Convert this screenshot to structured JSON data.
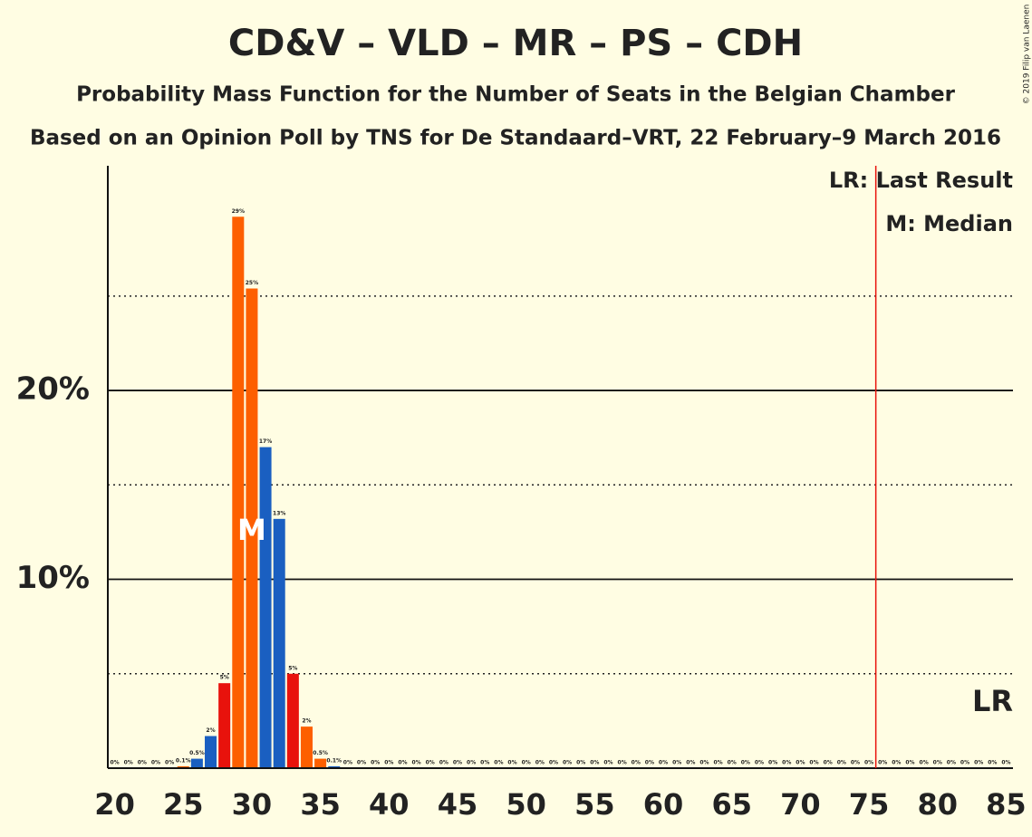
{
  "chart_data": {
    "type": "bar",
    "title": "CD&V – VLD – MR – PS – CDH",
    "subtitle": "Probability Mass Function for the Number of Seats in the Belgian Chamber",
    "subtitle2": "Based on an Opinion Poll by TNS for De Standaard–VRT, 22 February–9 March 2016",
    "copyright": "© 2019 Filip van Laenen",
    "x": [
      20,
      21,
      22,
      23,
      24,
      25,
      26,
      27,
      28,
      29,
      30,
      31,
      32,
      33,
      34,
      35,
      36,
      37,
      38,
      39,
      40,
      41,
      42,
      43,
      44,
      45,
      46,
      47,
      48,
      49,
      50,
      51,
      52,
      53,
      54,
      55,
      56,
      57,
      58,
      59,
      60,
      61,
      62,
      63,
      64,
      65,
      66,
      67,
      68,
      69,
      70,
      71,
      72,
      73,
      74,
      75,
      76,
      77,
      78,
      79,
      80,
      81,
      82,
      83,
      84,
      85
    ],
    "values": [
      0,
      0,
      0,
      0,
      0,
      0.1,
      0.5,
      1.7,
      4.5,
      29.2,
      25.4,
      17,
      13.2,
      5,
      2.2,
      0.5,
      0.1,
      0,
      0,
      0,
      0,
      0,
      0,
      0,
      0,
      0,
      0,
      0,
      0,
      0,
      0,
      0,
      0,
      0,
      0,
      0,
      0,
      0,
      0,
      0,
      0,
      0,
      0,
      0,
      0,
      0,
      0,
      0,
      0,
      0,
      0,
      0,
      0,
      0,
      0,
      0,
      0,
      0,
      0,
      0,
      0,
      0,
      0,
      0,
      0,
      0
    ],
    "value_labels": [
      "0%",
      "0%",
      "0%",
      "0%",
      "0%",
      "0.1%",
      "0.5%",
      "2%",
      "5%",
      "29%",
      "25%",
      "17%",
      "13%",
      "5%",
      "2%",
      "0.5%",
      "0.1%",
      "0%",
      "0%",
      "0%",
      "0%",
      "0%",
      "0%",
      "0%",
      "0%",
      "0%",
      "0%",
      "0%",
      "0%",
      "0%",
      "0%",
      "0%",
      "0%",
      "0%",
      "0%",
      "0%",
      "0%",
      "0%",
      "0%",
      "0%",
      "0%",
      "0%",
      "0%",
      "0%",
      "0%",
      "0%",
      "0%",
      "0%",
      "0%",
      "0%",
      "0%",
      "0%",
      "0%",
      "0%",
      "0%",
      "0%",
      "0%",
      "0%",
      "0%",
      "0%",
      "0%",
      "0%",
      "0%",
      "0%",
      "0%",
      "0%"
    ],
    "colors": [
      "#fd5f00",
      "#1a5fc1",
      "#1a5fc1",
      "#e8120c",
      "#fd5f00",
      "#fd5f00",
      "#1a5fc1",
      "#1a5fc1",
      "#e8120c",
      "#fd5f00",
      "#fd5f00",
      "#1a5fc1",
      "#1a5fc1",
      "#e8120c",
      "#fd5f00",
      "#fd5f00",
      "#1a5fc1",
      "#1a5fc1",
      "#e8120c",
      "#fd5f00",
      "#fd5f00",
      "#1a5fc1",
      "#1a5fc1",
      "#e8120c",
      "#fd5f00",
      "#fd5f00",
      "#1a5fc1",
      "#1a5fc1",
      "#e8120c",
      "#fd5f00",
      "#fd5f00",
      "#1a5fc1",
      "#1a5fc1",
      "#e8120c",
      "#fd5f00",
      "#fd5f00",
      "#1a5fc1",
      "#1a5fc1",
      "#e8120c",
      "#fd5f00",
      "#fd5f00",
      "#1a5fc1",
      "#1a5fc1",
      "#e8120c",
      "#fd5f00",
      "#fd5f00",
      "#1a5fc1",
      "#1a5fc1",
      "#e8120c",
      "#fd5f00",
      "#fd5f00",
      "#1a5fc1",
      "#1a5fc1",
      "#e8120c",
      "#fd5f00",
      "#fd5f00",
      "#1a5fc1",
      "#1a5fc1",
      "#e8120c",
      "#fd5f00",
      "#fd5f00",
      "#1a5fc1",
      "#1a5fc1",
      "#e8120c",
      "#fd5f00",
      "#fd5f00"
    ],
    "xlim": [
      19.5,
      85.5
    ],
    "xticks": [
      20,
      25,
      30,
      35,
      40,
      45,
      50,
      55,
      60,
      65,
      70,
      75,
      80,
      85
    ],
    "ylim": [
      0,
      31.9
    ],
    "yticks": [
      {
        "value": 10,
        "label": "10%"
      },
      {
        "value": 20,
        "label": "20%"
      }
    ],
    "minor_yticks": [
      5,
      15,
      25
    ],
    "grid": true,
    "last_result": 75.5,
    "last_result_color": "#e8120c",
    "last_result_label": "LR",
    "median": 30,
    "median_label": "M",
    "legend": [
      "LR: Last Result",
      "M: Median"
    ]
  }
}
